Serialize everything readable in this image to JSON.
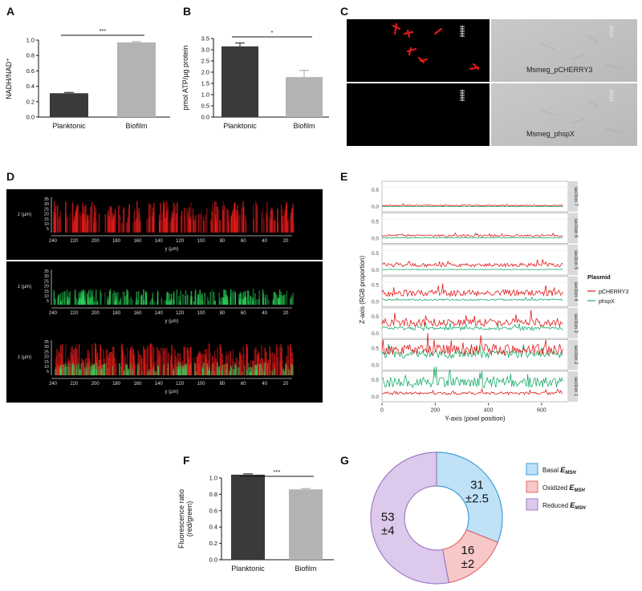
{
  "letters": {
    "A": "A",
    "B": "B",
    "C": "C",
    "D": "D",
    "E": "E",
    "F": "F",
    "G": "G"
  },
  "panel_c": {
    "label_top": "Msmeg_pCHERRY3",
    "label_bottom": "Msmeg_phspX"
  },
  "panel_d": {
    "z_label": "z (µm)",
    "y_label": "y (µm)",
    "z_ticks": [
      "35",
      "30",
      "25",
      "20",
      "15",
      "10",
      "5"
    ],
    "y_ticks": [
      "240",
      "220",
      "200",
      "180",
      "160",
      "140",
      "120",
      "100",
      "80",
      "60",
      "40",
      "20"
    ]
  },
  "colors": {
    "dark_bar": "#3a3a3a",
    "light_bar": "#b3b3b3",
    "red": "#e01b1b",
    "green": "#1aaa6a",
    "basal": "#bfe2f7",
    "oxidized": "#f8c8c8",
    "reduced": "#dcc9ec"
  },
  "chart_data": [
    {
      "id": "A",
      "type": "bar",
      "categories": [
        "Planktonic",
        "Biofilm"
      ],
      "values": [
        0.31,
        0.97
      ],
      "errors": [
        0.01,
        0.01
      ],
      "ylabel": "NADH/NAD⁺",
      "ylim": [
        0,
        1.0
      ],
      "yticks": [
        "0.0",
        "0.2",
        "0.4",
        "0.6",
        "0.8",
        "1.0"
      ],
      "significance": "***"
    },
    {
      "id": "B",
      "type": "bar",
      "categories": [
        "Planktonic",
        "Biofilm"
      ],
      "values": [
        3.15,
        1.78
      ],
      "errors": [
        0.15,
        0.3
      ],
      "ylabel": "pmol ATP/µg protein",
      "ylim": [
        0,
        3.5
      ],
      "yticks": [
        "0.0",
        "0.5",
        "1.0",
        "1.5",
        "2.0",
        "2.5",
        "3.0",
        "3.5"
      ],
      "significance": "*"
    },
    {
      "id": "E",
      "type": "line",
      "xlabel": "Y-axis (pixel position)",
      "ylabel": "Z-axis (RGB proportion)",
      "xlim": [
        0,
        700
      ],
      "xticks": [
        "0",
        "200",
        "400",
        "600"
      ],
      "yticks": [
        "0.0",
        "0.5"
      ],
      "legend_title": "Plasmid",
      "legend": [
        "pCHERRY3",
        "phspX"
      ],
      "sections": [
        {
          "name": "section 7",
          "red": 0.04,
          "green": 0.01
        },
        {
          "name": "section 6",
          "red": 0.08,
          "green": 0.02
        },
        {
          "name": "section 5",
          "red": 0.14,
          "green": 0.02
        },
        {
          "name": "section 4",
          "red": 0.24,
          "green": 0.06
        },
        {
          "name": "section 3",
          "red": 0.3,
          "green": 0.14
        },
        {
          "name": "section 2",
          "red": 0.42,
          "green": 0.3
        },
        {
          "name": "section 1",
          "red": 0.1,
          "green": 0.4
        }
      ]
    },
    {
      "id": "F",
      "type": "bar",
      "categories": [
        "Planktonic",
        "Biofilm"
      ],
      "values": [
        1.04,
        0.86
      ],
      "errors": [
        0.01,
        0.01
      ],
      "ylabel": "Fluorescence ratio\n(red/green)",
      "ylim": [
        0,
        1.0
      ],
      "yticks": [
        "0.0",
        "0.2",
        "0.4",
        "0.6",
        "0.8",
        "1.0"
      ],
      "significance": "***"
    },
    {
      "id": "G",
      "type": "pie",
      "slices": [
        {
          "name": "Basal",
          "sub": "MSH",
          "value": 31,
          "label": "31",
          "sd": "±2.5"
        },
        {
          "name": "Oxidized",
          "sub": "MSH",
          "value": 16,
          "label": "16",
          "sd": "±2"
        },
        {
          "name": "Reduced",
          "sub": "MSH",
          "value": 53,
          "label": "53",
          "sd": "±4"
        }
      ]
    }
  ]
}
